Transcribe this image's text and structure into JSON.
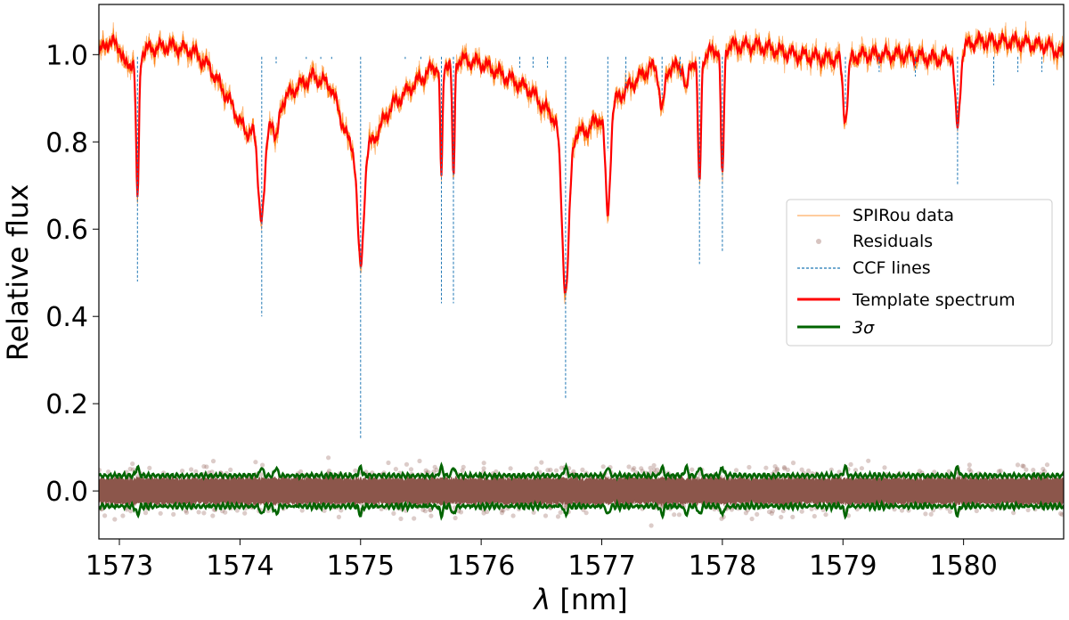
{
  "chart_data": {
    "type": "line",
    "xlabel": "λ [nm]",
    "ylabel": "Relative flux",
    "xlim": [
      1572.83,
      1580.83
    ],
    "ylim": [
      -0.11,
      1.115
    ],
    "xticks": [
      1573,
      1574,
      1575,
      1576,
      1577,
      1578,
      1579,
      1580
    ],
    "xtick_labels": [
      "1573",
      "1574",
      "1575",
      "1576",
      "1577",
      "1578",
      "1579",
      "1580"
    ],
    "yticks": [
      0.0,
      0.2,
      0.4,
      0.6,
      0.8,
      1.0
    ],
    "ytick_labels": [
      "0.0",
      "0.2",
      "0.4",
      "0.6",
      "0.8",
      "1.0"
    ],
    "grid": false,
    "legend_position": "center-right",
    "legend": [
      {
        "label": "SPIRou data",
        "color": "#ff7f0e",
        "style": "thin-line"
      },
      {
        "label": "Residuals",
        "color": "#8c564b",
        "style": "dots"
      },
      {
        "label": "CCF lines",
        "color": "#1f77b4",
        "style": "dashed"
      },
      {
        "label": "Template spectrum",
        "color": "#ff0000",
        "style": "thick-line"
      },
      {
        "label": "3σ",
        "color": "#006400",
        "style": "thick-line"
      }
    ],
    "continuum_points": [
      [
        1572.83,
        1.0
      ],
      [
        1572.9,
        1.03
      ],
      [
        1573.0,
        1.02
      ],
      [
        1573.05,
        0.97
      ],
      [
        1573.2,
        1.01
      ],
      [
        1573.4,
        1.02
      ],
      [
        1573.6,
        1.01
      ],
      [
        1573.75,
        0.97
      ],
      [
        1573.9,
        0.9
      ],
      [
        1574.05,
        0.82
      ],
      [
        1574.3,
        0.88
      ],
      [
        1574.45,
        0.92
      ],
      [
        1574.6,
        0.95
      ],
      [
        1574.75,
        0.93
      ],
      [
        1574.9,
        0.8
      ],
      [
        1575.0,
        0.78
      ],
      [
        1575.1,
        0.8
      ],
      [
        1575.25,
        0.88
      ],
      [
        1575.4,
        0.92
      ],
      [
        1575.6,
        0.97
      ],
      [
        1575.8,
        0.99
      ],
      [
        1576.0,
        0.98
      ],
      [
        1576.2,
        0.95
      ],
      [
        1576.4,
        0.92
      ],
      [
        1576.55,
        0.87
      ],
      [
        1576.7,
        0.83
      ],
      [
        1576.85,
        0.82
      ],
      [
        1577.0,
        0.86
      ],
      [
        1577.2,
        0.92
      ],
      [
        1577.4,
        0.97
      ],
      [
        1577.6,
        0.97
      ],
      [
        1577.8,
        0.99
      ],
      [
        1578.0,
        1.02
      ],
      [
        1578.3,
        1.02
      ],
      [
        1578.6,
        1.0
      ],
      [
        1578.9,
        0.99
      ],
      [
        1579.2,
        1.0
      ],
      [
        1579.5,
        1.0
      ],
      [
        1579.8,
        0.99
      ],
      [
        1580.1,
        1.03
      ],
      [
        1580.4,
        1.03
      ],
      [
        1580.7,
        1.02
      ],
      [
        1580.83,
        1.0
      ]
    ],
    "template_absorption_lines": [
      {
        "center": 1573.15,
        "depth": 0.33,
        "width": 0.012
      },
      {
        "center": 1574.18,
        "depth": 0.22,
        "width": 0.03
      },
      {
        "center": 1574.3,
        "depth": 0.08,
        "width": 0.02
      },
      {
        "center": 1575.0,
        "depth": 0.27,
        "width": 0.025
      },
      {
        "center": 1575.67,
        "depth": 0.26,
        "width": 0.01
      },
      {
        "center": 1575.77,
        "depth": 0.28,
        "width": 0.01
      },
      {
        "center": 1576.7,
        "depth": 0.37,
        "width": 0.03
      },
      {
        "center": 1577.05,
        "depth": 0.24,
        "width": 0.02
      },
      {
        "center": 1577.5,
        "depth": 0.1,
        "width": 0.02
      },
      {
        "center": 1577.7,
        "depth": 0.07,
        "width": 0.015
      },
      {
        "center": 1577.81,
        "depth": 0.3,
        "width": 0.012
      },
      {
        "center": 1578.0,
        "depth": 0.31,
        "width": 0.012
      },
      {
        "center": 1579.02,
        "depth": 0.14,
        "width": 0.02
      },
      {
        "center": 1579.95,
        "depth": 0.18,
        "width": 0.02
      }
    ],
    "ccf_lines": [
      {
        "x": 1573.15,
        "ymin": 0.48
      },
      {
        "x": 1574.18,
        "ymin": 0.4
      },
      {
        "x": 1574.3,
        "ymin": 0.98
      },
      {
        "x": 1574.55,
        "ymin": 0.99
      },
      {
        "x": 1574.67,
        "ymin": 0.99
      },
      {
        "x": 1574.76,
        "ymin": 0.99
      },
      {
        "x": 1575.0,
        "ymin": 0.12
      },
      {
        "x": 1575.37,
        "ymin": 0.99
      },
      {
        "x": 1575.5,
        "ymin": 0.99
      },
      {
        "x": 1575.67,
        "ymin": 0.43
      },
      {
        "x": 1575.77,
        "ymin": 0.43
      },
      {
        "x": 1576.32,
        "ymin": 0.97
      },
      {
        "x": 1576.43,
        "ymin": 0.97
      },
      {
        "x": 1576.55,
        "ymin": 0.97
      },
      {
        "x": 1576.7,
        "ymin": 0.21
      },
      {
        "x": 1577.05,
        "ymin": 0.78
      },
      {
        "x": 1577.2,
        "ymin": 0.92
      },
      {
        "x": 1577.5,
        "ymin": 0.9
      },
      {
        "x": 1577.65,
        "ymin": 0.95
      },
      {
        "x": 1577.81,
        "ymin": 0.52
      },
      {
        "x": 1578.0,
        "ymin": 0.55
      },
      {
        "x": 1579.02,
        "ymin": 0.88
      },
      {
        "x": 1579.3,
        "ymin": 0.96
      },
      {
        "x": 1579.6,
        "ymin": 0.95
      },
      {
        "x": 1579.95,
        "ymin": 0.7
      },
      {
        "x": 1580.25,
        "ymin": 0.93
      },
      {
        "x": 1580.45,
        "ymin": 0.96
      },
      {
        "x": 1580.65,
        "ymin": 0.96
      }
    ],
    "residual_band_halfwidth": 0.03,
    "three_sigma_level": 0.035
  }
}
